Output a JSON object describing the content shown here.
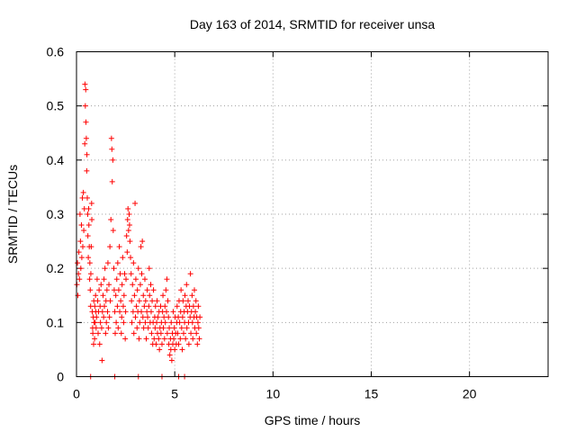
{
  "chart_data": {
    "type": "scatter",
    "title": "Day 163 of 2014, SRMTID for receiver unsa",
    "xlabel": "GPS time / hours",
    "ylabel": "SRMTID / TECUs",
    "xlim": [
      0,
      24
    ],
    "ylim": [
      0,
      0.6
    ],
    "x_ticks": [
      0,
      5,
      10,
      15,
      20
    ],
    "y_ticks": [
      0,
      0.1,
      0.2,
      0.3,
      0.4,
      0.5,
      0.6
    ],
    "x_tick_labels": [
      "0",
      "5",
      "10",
      "15",
      "20"
    ],
    "y_tick_labels": [
      "0",
      "0.1",
      "0.2",
      "0.3",
      "0.4",
      "0.5",
      "0.6"
    ],
    "grid": true,
    "legend": "none",
    "series": [
      {
        "name": "SRMTID",
        "color": "#ff0000",
        "marker": "plus",
        "points": [
          [
            0.02,
            0.17
          ],
          [
            0.05,
            0.21
          ],
          [
            0.07,
            0.15
          ],
          [
            0.1,
            0.19
          ],
          [
            0.12,
            0.23
          ],
          [
            0.15,
            0.18
          ],
          [
            0.18,
            0.3
          ],
          [
            0.2,
            0.25
          ],
          [
            0.22,
            0.2
          ],
          [
            0.25,
            0.28
          ],
          [
            0.27,
            0.22
          ],
          [
            0.3,
            0.33
          ],
          [
            0.32,
            0.24
          ],
          [
            0.35,
            0.34
          ],
          [
            0.37,
            0.27
          ],
          [
            0.4,
            0.31
          ],
          [
            0.42,
            0.43
          ],
          [
            0.43,
            0.54
          ],
          [
            0.45,
            0.5
          ],
          [
            0.47,
            0.53
          ],
          [
            0.48,
            0.47
          ],
          [
            0.5,
            0.44
          ],
          [
            0.52,
            0.38
          ],
          [
            0.53,
            0.41
          ],
          [
            0.55,
            0.33
          ],
          [
            0.57,
            0.3
          ],
          [
            0.58,
            0.26
          ],
          [
            0.6,
            0.22
          ],
          [
            0.62,
            0.31
          ],
          [
            0.63,
            0.28
          ],
          [
            0.65,
            0.24
          ],
          [
            0.67,
            0.18
          ],
          [
            0.68,
            0.21
          ],
          [
            0.7,
            0.16
          ],
          [
            0.72,
            0.13
          ],
          [
            0.73,
            0.19
          ],
          [
            0.75,
            0.24
          ],
          [
            0.77,
            0.32
          ],
          [
            0.78,
            0.29
          ],
          [
            0.8,
            0.12
          ],
          [
            0.82,
            0.09
          ],
          [
            0.83,
            0.08
          ],
          [
            0.85,
            0.11
          ],
          [
            0.87,
            0.06
          ],
          [
            0.88,
            0.14
          ],
          [
            0.9,
            0.1
          ],
          [
            0.92,
            0.07
          ],
          [
            0.93,
            0.13
          ],
          [
            0.95,
            0.1
          ],
          [
            0.97,
            0.15
          ],
          [
            0.98,
            0.12
          ],
          [
            1.0,
            0.09
          ],
          [
            1.02,
            0.11
          ],
          [
            1.05,
            0.18
          ],
          [
            1.08,
            0.14
          ],
          [
            1.1,
            0.08
          ],
          [
            1.12,
            0.12
          ],
          [
            1.15,
            0.16
          ],
          [
            1.18,
            0.06
          ],
          [
            1.2,
            0.13
          ],
          [
            1.22,
            0.1
          ],
          [
            1.25,
            0.17
          ],
          [
            1.28,
            0.09
          ],
          [
            1.3,
            0.03
          ],
          [
            1.32,
            0.12
          ],
          [
            1.35,
            0.15
          ],
          [
            1.38,
            0.11
          ],
          [
            1.4,
            0.18
          ],
          [
            1.42,
            0.13
          ],
          [
            1.45,
            0.2
          ],
          [
            1.48,
            0.08
          ],
          [
            1.5,
            0.14
          ],
          [
            1.52,
            0.1
          ],
          [
            1.55,
            0.16
          ],
          [
            1.58,
            0.12
          ],
          [
            1.6,
            0.21
          ],
          [
            1.62,
            0.09
          ],
          [
            1.65,
            0.17
          ],
          [
            1.68,
            0.11
          ],
          [
            1.7,
            0.24
          ],
          [
            1.72,
            0.14
          ],
          [
            1.75,
            0.29
          ],
          [
            1.78,
            0.44
          ],
          [
            1.8,
            0.42
          ],
          [
            1.82,
            0.36
          ],
          [
            1.85,
            0.4
          ],
          [
            1.87,
            0.27
          ],
          [
            1.9,
            0.2
          ],
          [
            1.92,
            0.16
          ],
          [
            1.95,
            0.12
          ],
          [
            1.97,
            0.08
          ],
          [
            2.0,
            0.15
          ],
          [
            2.02,
            0.1
          ],
          [
            2.05,
            0.18
          ],
          [
            2.08,
            0.13
          ],
          [
            2.1,
            0.21
          ],
          [
            2.12,
            0.09
          ],
          [
            2.15,
            0.16
          ],
          [
            2.18,
            0.24
          ],
          [
            2.2,
            0.12
          ],
          [
            2.22,
            0.19
          ],
          [
            2.25,
            0.14
          ],
          [
            2.28,
            0.08
          ],
          [
            2.3,
            0.11
          ],
          [
            2.32,
            0.17
          ],
          [
            2.35,
            0.22
          ],
          [
            2.38,
            0.13
          ],
          [
            2.4,
            0.1
          ],
          [
            2.42,
            0.15
          ],
          [
            2.45,
            0.19
          ],
          [
            2.48,
            0.07
          ],
          [
            2.5,
            0.12
          ],
          [
            2.52,
            0.18
          ],
          [
            2.55,
            0.26
          ],
          [
            2.58,
            0.23
          ],
          [
            2.6,
            0.29
          ],
          [
            2.62,
            0.31
          ],
          [
            2.65,
            0.27
          ],
          [
            2.68,
            0.3
          ],
          [
            2.7,
            0.28
          ],
          [
            2.72,
            0.25
          ],
          [
            2.75,
            0.22
          ],
          [
            2.78,
            0.19
          ],
          [
            2.8,
            0.14
          ],
          [
            2.82,
            0.1
          ],
          [
            2.85,
            0.17
          ],
          [
            2.88,
            0.12
          ],
          [
            2.9,
            0.21
          ],
          [
            2.92,
            0.08
          ],
          [
            2.95,
            0.15
          ],
          [
            2.98,
            0.32
          ],
          [
            3.0,
            0.11
          ],
          [
            3.02,
            0.18
          ],
          [
            3.05,
            0.13
          ],
          [
            3.08,
            0.09
          ],
          [
            3.1,
            0.16
          ],
          [
            3.12,
            0.12
          ],
          [
            3.15,
            0.2
          ],
          [
            3.18,
            0.07
          ],
          [
            3.2,
            0.14
          ],
          [
            3.22,
            0.1
          ],
          [
            3.25,
            0.17
          ],
          [
            3.28,
            0.24
          ],
          [
            3.3,
            0.12
          ],
          [
            3.32,
            0.19
          ],
          [
            3.35,
            0.25
          ],
          [
            3.38,
            0.11
          ],
          [
            3.4,
            0.15
          ],
          [
            3.42,
            0.09
          ],
          [
            3.45,
            0.13
          ],
          [
            3.48,
            0.18
          ],
          [
            3.5,
            0.1
          ],
          [
            3.52,
            0.14
          ],
          [
            3.55,
            0.07
          ],
          [
            3.58,
            0.12
          ],
          [
            3.6,
            0.16
          ],
          [
            3.62,
            0.11
          ],
          [
            3.65,
            0.09
          ],
          [
            3.68,
            0.13
          ],
          [
            3.7,
            0.2
          ],
          [
            3.72,
            0.15
          ],
          [
            3.75,
            0.1
          ],
          [
            3.78,
            0.17
          ],
          [
            3.8,
            0.12
          ],
          [
            3.82,
            0.08
          ],
          [
            3.85,
            0.14
          ],
          [
            3.88,
            0.06
          ],
          [
            3.9,
            0.1
          ],
          [
            3.92,
            0.16
          ],
          [
            3.95,
            0.07
          ],
          [
            3.98,
            0.11
          ],
          [
            4.0,
            0.09
          ],
          [
            4.02,
            0.13
          ],
          [
            4.05,
            0.06
          ],
          [
            4.08,
            0.1
          ],
          [
            4.1,
            0.14
          ],
          [
            4.12,
            0.08
          ],
          [
            4.15,
            0.11
          ],
          [
            4.18,
            0.07
          ],
          [
            4.2,
            0.12
          ],
          [
            4.22,
            0.05
          ],
          [
            4.25,
            0.09
          ],
          [
            4.28,
            0.13
          ],
          [
            4.3,
            0.08
          ],
          [
            4.32,
            0.1
          ],
          [
            4.35,
            0.06
          ],
          [
            4.38,
            0.12
          ],
          [
            4.4,
            0.15
          ],
          [
            4.42,
            0.09
          ],
          [
            4.45,
            0.11
          ],
          [
            4.48,
            0.07
          ],
          [
            4.5,
            0.13
          ],
          [
            4.52,
            0.1
          ],
          [
            4.55,
            0.16
          ],
          [
            4.58,
            0.12
          ],
          [
            4.6,
            0.18
          ],
          [
            4.62,
            0.08
          ],
          [
            4.65,
            0.14
          ],
          [
            4.68,
            0.11
          ],
          [
            4.7,
            0.06
          ],
          [
            4.72,
            0.09
          ],
          [
            4.75,
            0.04
          ],
          [
            4.78,
            0.07
          ],
          [
            4.8,
            0.05
          ],
          [
            4.82,
            0.1
          ],
          [
            4.85,
            0.03
          ],
          [
            4.88,
            0.08
          ],
          [
            4.9,
            0.06
          ],
          [
            4.92,
            0.12
          ],
          [
            4.95,
            0.07
          ],
          [
            4.98,
            0.09
          ],
          [
            5.0,
            0.05
          ],
          [
            5.02,
            0.11
          ],
          [
            5.05,
            0.08
          ],
          [
            5.08,
            0.06
          ],
          [
            5.1,
            0.1
          ],
          [
            5.12,
            0.13
          ],
          [
            5.15,
            0.08
          ],
          [
            5.18,
            0.11
          ],
          [
            5.2,
            0.06
          ],
          [
            5.22,
            0.14
          ],
          [
            5.25,
            0.1
          ],
          [
            5.28,
            0.07
          ],
          [
            5.3,
            0.12
          ],
          [
            5.32,
            0.16
          ],
          [
            5.35,
            0.09
          ],
          [
            5.38,
            0.05
          ],
          [
            5.4,
            0.11
          ],
          [
            5.42,
            0.14
          ],
          [
            5.45,
            0.08
          ],
          [
            5.48,
            0.12
          ],
          [
            5.5,
            0.1
          ],
          [
            5.52,
            0.15
          ],
          [
            5.55,
            0.07
          ],
          [
            5.58,
            0.13
          ],
          [
            5.6,
            0.17
          ],
          [
            5.62,
            0.09
          ],
          [
            5.65,
            0.12
          ],
          [
            5.68,
            0.14
          ],
          [
            5.7,
            0.1
          ],
          [
            5.72,
            0.06
          ],
          [
            5.75,
            0.13
          ],
          [
            5.78,
            0.11
          ],
          [
            5.8,
            0.19
          ],
          [
            5.82,
            0.08
          ],
          [
            5.85,
            0.12
          ],
          [
            5.88,
            0.15
          ],
          [
            5.9,
            0.1
          ],
          [
            5.92,
            0.07
          ],
          [
            5.95,
            0.13
          ],
          [
            5.98,
            0.11
          ],
          [
            6.0,
            0.16
          ],
          [
            6.02,
            0.09
          ],
          [
            6.05,
            0.12
          ],
          [
            6.08,
            0.14
          ],
          [
            6.1,
            0.08
          ],
          [
            6.12,
            0.11
          ],
          [
            6.15,
            0.06
          ],
          [
            6.18,
            0.1
          ],
          [
            6.2,
            0.13
          ],
          [
            6.22,
            0.09
          ],
          [
            6.25,
            0.07
          ],
          [
            6.28,
            0.11
          ],
          [
            0.72,
            0
          ],
          [
            1.95,
            0
          ],
          [
            3.15,
            0
          ],
          [
            4.35,
            0
          ],
          [
            5.2,
            0
          ],
          [
            5.5,
            0
          ]
        ]
      }
    ]
  }
}
